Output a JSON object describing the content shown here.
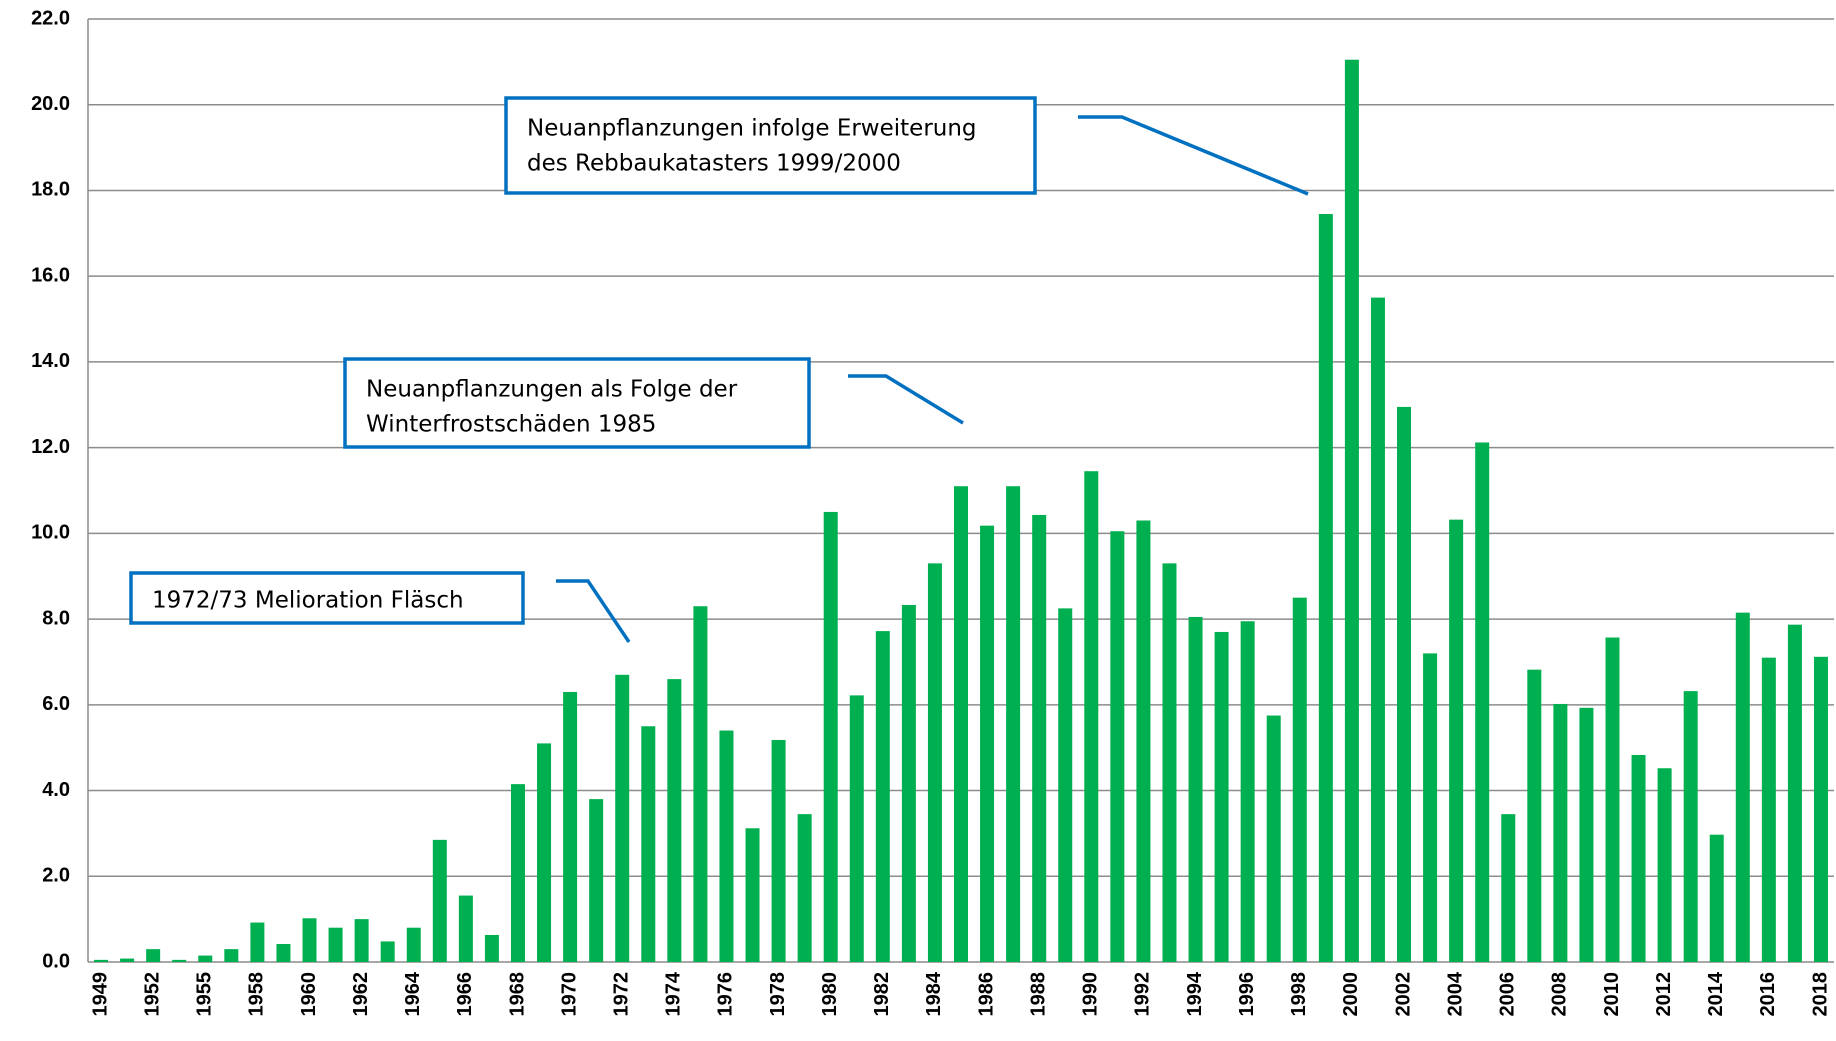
{
  "chart_data": {
    "type": "bar",
    "categories": [
      "1949",
      null,
      "1952",
      null,
      "1955",
      null,
      "1958",
      null,
      "1960",
      null,
      "1962",
      null,
      "1964",
      null,
      "1966",
      null,
      "1968",
      null,
      "1970",
      null,
      "1972",
      null,
      "1974",
      null,
      "1976",
      null,
      "1978",
      null,
      "1980",
      null,
      "1982",
      null,
      "1984",
      null,
      "1986",
      null,
      "1988",
      null,
      "1990",
      null,
      "1992",
      null,
      "1994",
      null,
      "1996",
      null,
      "1998",
      null,
      "2000",
      null,
      "2002",
      null,
      "2004",
      null,
      "2006",
      null,
      "2008",
      null,
      "2010",
      null,
      "2012",
      null,
      "2014",
      null,
      "2016",
      null,
      "2018"
    ],
    "values": [
      0.05,
      0.08,
      0.3,
      0.05,
      0.15,
      0.3,
      0.92,
      0.42,
      1.02,
      0.8,
      1.0,
      0.48,
      0.8,
      2.85,
      1.55,
      0.63,
      4.15,
      5.1,
      6.3,
      3.8,
      6.7,
      5.5,
      6.6,
      8.3,
      5.4,
      3.12,
      5.18,
      3.45,
      10.5,
      6.22,
      7.72,
      8.33,
      9.3,
      11.1,
      10.18,
      11.1,
      10.43,
      8.25,
      11.45,
      10.05,
      10.3,
      9.3,
      8.05,
      7.7,
      7.95,
      5.75,
      8.5,
      17.45,
      21.05,
      15.5,
      12.95,
      7.2,
      10.32,
      12.12,
      3.45,
      6.82,
      6.02,
      5.93,
      7.57,
      4.83,
      4.52,
      6.32,
      2.97,
      8.15,
      7.1,
      7.87,
      7.12
    ],
    "color": "#00b050",
    "ylim": [
      0,
      22
    ],
    "yticks": [
      {
        "value": 0,
        "label": "0.0"
      },
      {
        "value": 2,
        "label": "2.0"
      },
      {
        "value": 4,
        "label": "4.0"
      },
      {
        "value": 6,
        "label": "6.0"
      },
      {
        "value": 8,
        "label": "8.0"
      },
      {
        "value": 10,
        "label": "10.0"
      },
      {
        "value": 12,
        "label": "12.0"
      },
      {
        "value": 14,
        "label": "14.0"
      },
      {
        "value": 16,
        "label": "16.0"
      },
      {
        "value": 18,
        "label": "18.0"
      },
      {
        "value": 20,
        "label": "20.0"
      },
      {
        "value": 22,
        "label": "22.0"
      }
    ],
    "grid": true,
    "annotations": [
      {
        "lines": [
          "Neuanpflanzungen infolge Erweiterung",
          "des Rebbaukatasters 1999/2000"
        ]
      },
      {
        "lines": [
          "Neuanpflanzungen als Folge der",
          "Winterfrostschäden 1985"
        ]
      },
      {
        "lines": [
          "1972/73 Melioration Fläsch"
        ]
      }
    ]
  }
}
